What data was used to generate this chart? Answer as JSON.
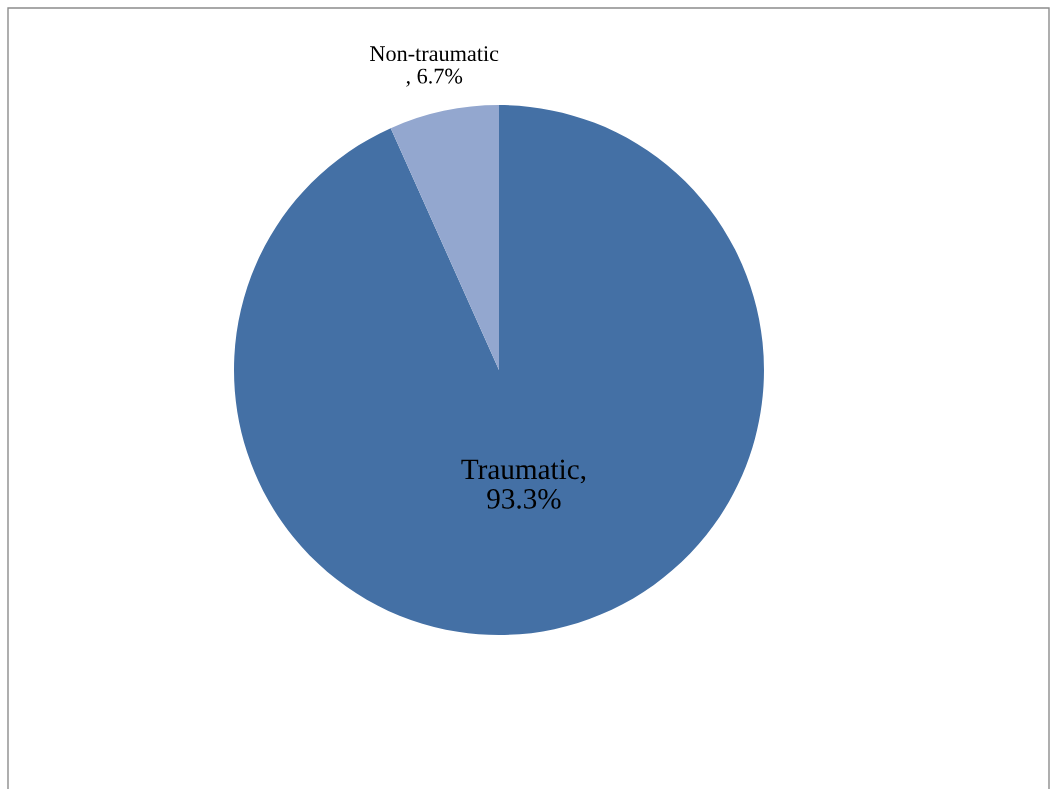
{
  "chart_data": {
    "type": "pie",
    "categories": [
      "Traumatic",
      "Non-traumatic"
    ],
    "values": [
      93.3,
      6.7
    ],
    "colors": [
      "#4470a5",
      "#93a7cf"
    ],
    "value_labels": [
      ", 93.3%",
      ", 6.7%"
    ]
  }
}
